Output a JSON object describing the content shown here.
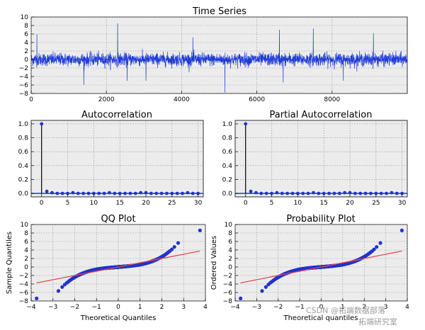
{
  "chart_data": [
    {
      "id": "time-series",
      "type": "line",
      "title": "Time Series",
      "xlabel": "",
      "ylabel": "",
      "xlim": [
        0,
        10000
      ],
      "ylim": [
        -8,
        10
      ],
      "xticks": [
        0,
        2000,
        4000,
        6000,
        8000
      ],
      "yticks": [
        -8,
        -6,
        -4,
        -2,
        0,
        2,
        4,
        6,
        8,
        10
      ],
      "n_points": 10000,
      "typical_range": [
        -2,
        2
      ],
      "spikes": [
        {
          "x": 150,
          "y": 6
        },
        {
          "x": 1400,
          "y": -6
        },
        {
          "x": 2300,
          "y": 8.5
        },
        {
          "x": 2550,
          "y": -5
        },
        {
          "x": 5150,
          "y": -7.8
        },
        {
          "x": 6600,
          "y": 7
        },
        {
          "x": 7500,
          "y": 7.3
        },
        {
          "x": 9100,
          "y": 6.2
        },
        {
          "x": 6700,
          "y": -5.4
        },
        {
          "x": 3050,
          "y": -5
        },
        {
          "x": 4300,
          "y": 5.2
        },
        {
          "x": 8300,
          "y": -5
        }
      ],
      "grid": true,
      "color": "#1f3bd6"
    },
    {
      "id": "acf",
      "type": "stem",
      "title": "Autocorrelation",
      "xlim": [
        -2,
        31
      ],
      "ylim": [
        -0.05,
        1.05
      ],
      "xticks": [
        0,
        5,
        10,
        15,
        20,
        25,
        30
      ],
      "yticks": [
        0.0,
        0.2,
        0.4,
        0.6,
        0.8,
        1.0
      ],
      "lags": [
        0,
        1,
        2,
        3,
        4,
        5,
        6,
        7,
        8,
        9,
        10,
        11,
        12,
        13,
        14,
        15,
        16,
        17,
        18,
        19,
        20,
        21,
        22,
        23,
        24,
        25,
        26,
        27,
        28,
        29,
        30
      ],
      "values": [
        1.0,
        0.03,
        0.01,
        0.0,
        0.0,
        0.0,
        0.01,
        0.0,
        0.0,
        0.0,
        0.0,
        0.0,
        0.0,
        0.01,
        0.0,
        0.0,
        0.0,
        0.0,
        0.0,
        0.01,
        0.01,
        0.0,
        0.0,
        0.0,
        0.0,
        0.0,
        0.0,
        0.0,
        0.01,
        0.0,
        0.0
      ],
      "grid": true
    },
    {
      "id": "pacf",
      "type": "stem",
      "title": "Partial Autocorrelation",
      "xlim": [
        -2,
        31
      ],
      "ylim": [
        -0.05,
        1.05
      ],
      "xticks": [
        0,
        5,
        10,
        15,
        20,
        25,
        30
      ],
      "yticks": [
        0.0,
        0.2,
        0.4,
        0.6,
        0.8,
        1.0
      ],
      "lags": [
        0,
        1,
        2,
        3,
        4,
        5,
        6,
        7,
        8,
        9,
        10,
        11,
        12,
        13,
        14,
        15,
        16,
        17,
        18,
        19,
        20,
        21,
        22,
        23,
        24,
        25,
        26,
        27,
        28,
        29,
        30
      ],
      "values": [
        1.0,
        0.03,
        0.01,
        0.0,
        0.0,
        0.0,
        0.01,
        0.0,
        0.0,
        0.0,
        0.0,
        0.0,
        0.0,
        0.01,
        0.0,
        0.0,
        0.0,
        0.0,
        0.0,
        0.01,
        0.01,
        0.0,
        0.0,
        0.0,
        0.0,
        0.0,
        0.0,
        0.0,
        0.01,
        0.0,
        0.0
      ],
      "grid": true
    },
    {
      "id": "qq",
      "type": "scatter",
      "title": "QQ Plot",
      "xlabel": "Theoretical Quantiles",
      "ylabel": "Sample Quantiles",
      "xlim": [
        -4,
        4
      ],
      "ylim": [
        -8,
        10
      ],
      "xticks": [
        -4,
        -3,
        -2,
        -1,
        0,
        1,
        2,
        3,
        4
      ],
      "yticks": [
        -8,
        -6,
        -4,
        -2,
        0,
        2,
        4,
        6,
        8,
        10
      ],
      "reference_line": {
        "slope": 1.0,
        "intercept": 0.0
      },
      "tail_points": {
        "min": [
          -3.75,
          -7.4
        ],
        "max": [
          3.75,
          8.6
        ]
      },
      "grid": true
    },
    {
      "id": "probplot",
      "type": "scatter",
      "title": "Probability Plot",
      "xlabel": "Theoretical quantiles",
      "ylabel": "Ordered Values",
      "xlim": [
        -4,
        4
      ],
      "ylim": [
        -8,
        10
      ],
      "xticks": [
        -4,
        -3,
        -2,
        -1,
        0,
        1,
        2,
        3,
        4
      ],
      "yticks": [
        -8,
        -6,
        -4,
        -2,
        0,
        2,
        4,
        6,
        8,
        10
      ],
      "reference_line": {
        "slope": 1.0,
        "intercept": 0.0
      },
      "tail_points": {
        "min": [
          -3.75,
          -7.4
        ],
        "max": [
          3.75,
          8.6
        ]
      },
      "grid": true
    }
  ],
  "watermark": {
    "line1": "CSDN @拓端数据部落",
    "line2": "拓端研究室"
  },
  "colors": {
    "series": "#1f3bd6",
    "points": "#2233cc",
    "fit": "#e4474f",
    "zero": "#1f3bd6",
    "stem": "#000000",
    "panel_bg": "#ececec",
    "grid": "#8a8a8a"
  }
}
